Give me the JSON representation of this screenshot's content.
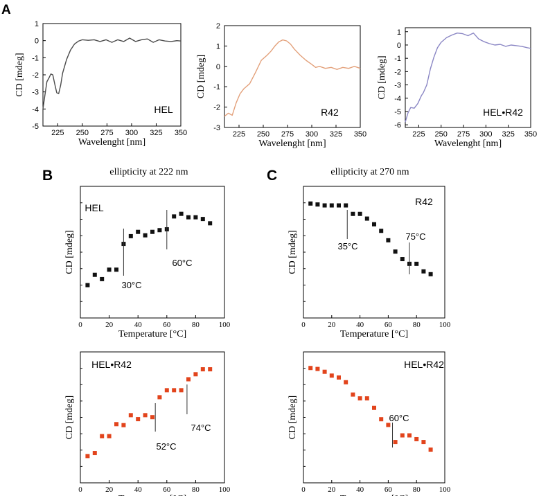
{
  "panels": {
    "a_letter": "A",
    "b_letter": "B",
    "c_letter": "C",
    "b_title": "ellipticity at 222 nm",
    "c_title": "ellipticity at 270 nm"
  },
  "colors": {
    "hel_line": "#4a4a4a",
    "r42_line": "#e3a07a",
    "complex_line": "#8a86c4",
    "b_top_marker": "#111111",
    "orange_marker": "#e2441c",
    "axis": "#000000"
  },
  "chart_data": [
    {
      "id": "a1",
      "type": "line",
      "panel": "A",
      "label": "HEL",
      "xlabel": "Wavelenght [nm]",
      "ylabel": "CD [mdeg]",
      "xlim": [
        210,
        350
      ],
      "ylim": [
        -5,
        1
      ],
      "xticks": [
        225,
        250,
        275,
        300,
        325,
        350
      ],
      "yticks": [
        1,
        0,
        -1,
        -2,
        -3,
        -4,
        -5
      ],
      "x": [
        210,
        212,
        214,
        216,
        218,
        220,
        222,
        224,
        226,
        228,
        230,
        234,
        238,
        242,
        246,
        250,
        256,
        262,
        268,
        274,
        280,
        286,
        292,
        298,
        304,
        310,
        316,
        322,
        328,
        334,
        340,
        346,
        350
      ],
      "y": [
        -4.0,
        -3.2,
        -2.4,
        -2.2,
        -1.95,
        -2.0,
        -2.55,
        -3.05,
        -3.1,
        -2.6,
        -1.9,
        -1.1,
        -0.55,
        -0.2,
        -0.03,
        0.05,
        0.02,
        0.05,
        -0.05,
        0.05,
        -0.1,
        0.05,
        -0.05,
        0.15,
        -0.05,
        0.05,
        0.1,
        -0.1,
        0.05,
        -0.02,
        -0.05,
        0.0,
        -0.02
      ]
    },
    {
      "id": "a2",
      "type": "line",
      "panel": "A",
      "label": "R42",
      "xlabel": "Wavelenght [nm]",
      "ylabel": "CD [mdeg]",
      "xlim": [
        210,
        350
      ],
      "ylim": [
        -3,
        2
      ],
      "xticks": [
        225,
        250,
        275,
        300,
        325,
        350
      ],
      "yticks": [
        2,
        1,
        0,
        -1,
        -2,
        -3
      ],
      "x": [
        210,
        214,
        218,
        222,
        226,
        230,
        236,
        242,
        248,
        254,
        258,
        262,
        266,
        270,
        274,
        278,
        282,
        288,
        294,
        300,
        304,
        308,
        314,
        320,
        326,
        332,
        338,
        344,
        350
      ],
      "y": [
        -2.45,
        -2.3,
        -2.4,
        -1.8,
        -1.35,
        -1.1,
        -0.85,
        -0.3,
        0.3,
        0.55,
        0.75,
        1.0,
        1.2,
        1.3,
        1.25,
        1.1,
        0.85,
        0.55,
        0.3,
        0.1,
        -0.05,
        0.0,
        -0.1,
        -0.05,
        -0.15,
        -0.05,
        -0.1,
        0.0,
        -0.1
      ]
    },
    {
      "id": "a3",
      "type": "line",
      "panel": "A",
      "label": "HEL•R42",
      "xlabel": "Wavelenght [nm]",
      "ylabel": "CD [mdeg]",
      "xlim": [
        210,
        350
      ],
      "ylim": [
        -6.2,
        1.3
      ],
      "xticks": [
        225,
        250,
        275,
        300,
        325,
        350
      ],
      "yticks": [
        1,
        0,
        -1,
        -2,
        -3,
        -4,
        -5,
        -6
      ],
      "x": [
        210,
        213,
        216,
        220,
        224,
        228,
        230,
        234,
        238,
        242,
        246,
        250,
        256,
        262,
        268,
        274,
        280,
        286,
        292,
        298,
        304,
        310,
        316,
        322,
        328,
        334,
        340,
        346,
        350
      ],
      "y": [
        -5.8,
        -5.1,
        -4.7,
        -4.75,
        -4.4,
        -3.8,
        -3.6,
        -3.0,
        -1.8,
        -0.9,
        -0.2,
        0.2,
        0.55,
        0.75,
        0.9,
        0.85,
        0.7,
        0.9,
        0.45,
        0.25,
        0.1,
        0.0,
        0.05,
        -0.1,
        0.0,
        -0.05,
        -0.1,
        -0.2,
        -0.25
      ]
    },
    {
      "id": "b1",
      "type": "scatter",
      "panel": "B",
      "label": "HEL",
      "xlabel": "Temperature [°C]",
      "ylabel": "CD [mdeg]",
      "xlim": [
        0,
        100
      ],
      "xticks": [
        0,
        20,
        40,
        60,
        80,
        100
      ],
      "ylim": [
        0,
        10
      ],
      "x": [
        5,
        10,
        15,
        20,
        25,
        30,
        35,
        40,
        45,
        50,
        55,
        60,
        65,
        70,
        75,
        80,
        85,
        90
      ],
      "y": [
        1.0,
        2.2,
        1.7,
        2.8,
        2.8,
        5.8,
        6.7,
        7.2,
        6.8,
        7.2,
        7.4,
        7.5,
        9.0,
        9.3,
        8.9,
        8.9,
        8.7,
        8.2
      ],
      "annotations": [
        {
          "label": "30°C",
          "x": 30
        },
        {
          "label": "60°C",
          "x": 60
        }
      ]
    },
    {
      "id": "c1",
      "type": "scatter",
      "panel": "C",
      "label": "R42",
      "xlabel": "Temperature [°C]",
      "ylabel": "CD [mdeg]",
      "xlim": [
        0,
        100
      ],
      "xticks": [
        0,
        20,
        40,
        60,
        80,
        100
      ],
      "ylim": [
        0,
        10
      ],
      "x": [
        5,
        10,
        15,
        20,
        25,
        30,
        35,
        40,
        45,
        50,
        55,
        60,
        65,
        70,
        75,
        80,
        85,
        90
      ],
      "y": [
        9.5,
        9.4,
        9.3,
        9.3,
        9.3,
        9.3,
        8.4,
        8.4,
        7.9,
        7.3,
        6.6,
        5.6,
        4.4,
        3.6,
        3.1,
        3.1,
        2.3,
        2.0
      ],
      "annotations": [
        {
          "label": "35°C",
          "x": 31
        },
        {
          "label": "75°C",
          "x": 75
        }
      ]
    },
    {
      "id": "b2",
      "type": "scatter",
      "panel": "B",
      "label": "HEL•R42",
      "xlabel": "Temperature [°C]",
      "ylabel": "CD [mdeg]",
      "xlim": [
        0,
        100
      ],
      "xticks": [
        0,
        20,
        40,
        60,
        80,
        100
      ],
      "ylim": [
        0,
        10
      ],
      "x": [
        5,
        10,
        15,
        20,
        25,
        30,
        35,
        40,
        45,
        50,
        55,
        60,
        65,
        70,
        75,
        80,
        85,
        90
      ],
      "y": [
        0.6,
        0.9,
        2.6,
        2.6,
        3.8,
        3.7,
        4.7,
        4.3,
        4.7,
        4.5,
        6.5,
        7.2,
        7.2,
        7.2,
        8.3,
        8.8,
        9.3,
        9.3
      ],
      "annotations": [
        {
          "label": "52°C",
          "x": 52
        },
        {
          "label": "74°C",
          "x": 74
        }
      ]
    },
    {
      "id": "c2",
      "type": "scatter",
      "panel": "C",
      "label": "HEL•R42",
      "xlabel": "Temperature [°C]",
      "ylabel": "CD [mdeg]",
      "xlim": [
        0,
        100
      ],
      "xticks": [
        0,
        20,
        40,
        60,
        80,
        100
      ],
      "ylim": [
        0,
        10
      ],
      "x": [
        5,
        10,
        15,
        20,
        25,
        30,
        35,
        40,
        45,
        50,
        55,
        60,
        65,
        70,
        75,
        80,
        85,
        90
      ],
      "y": [
        9.4,
        9.3,
        9.0,
        8.6,
        8.4,
        7.9,
        6.6,
        6.2,
        6.2,
        5.2,
        4.0,
        3.4,
        1.6,
        2.3,
        2.3,
        1.9,
        1.6,
        0.8
      ],
      "annotations": [
        {
          "label": "60°C",
          "x": 63
        }
      ]
    }
  ]
}
